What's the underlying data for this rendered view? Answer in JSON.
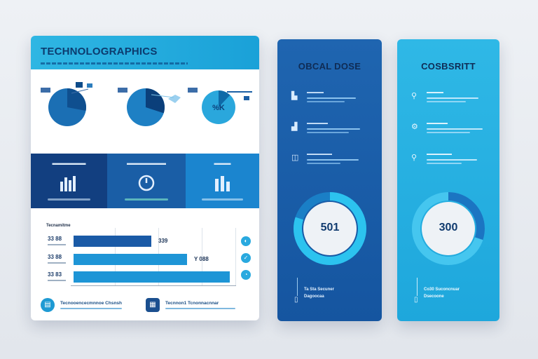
{
  "left_card": {
    "title": "TECHNOLOGRAPHICS",
    "pies": [
      {
        "label_top": "▬▬",
        "fraction": 0.28,
        "color": "#1b6fb4",
        "dark": "#0f4f8f"
      },
      {
        "label_top": "▬▬",
        "fraction": 0.3,
        "color": "#1e80c4",
        "dark": "#0b3f7a"
      },
      {
        "label_top": "▬▬",
        "fraction": 0.12,
        "color": "#2aa7dc",
        "dark": "#0e6aa8",
        "center_text": "%K"
      }
    ],
    "tiles": [
      {
        "label": "▬▬▬▬▬▬",
        "color": "#123f80"
      },
      {
        "label": "▬▬▬▬▬▬▬",
        "color": "#1a5ea6"
      },
      {
        "label": "▬▬▬",
        "color": "#1b85cf"
      }
    ],
    "bars": {
      "title": "Tecnamitme",
      "rows": [
        {
          "label": "33 88",
          "value_label": "339",
          "fraction": 0.48,
          "color": "#1a5aa6"
        },
        {
          "label": "33 88",
          "value_label": "Y 088",
          "fraction": 0.7,
          "color": "#1e95d6"
        },
        {
          "label": "33 83",
          "value_label": "",
          "fraction": 0.96,
          "color": "#1e95d6"
        }
      ]
    },
    "footer": {
      "left_text": "Tecnooencecmnnoe Chsnsh",
      "right_text": "Tecnnon1 Tcnonnacnnar"
    }
  },
  "mid_card": {
    "title": "OBCAL DOSE",
    "rows": [
      {
        "icon": "▙",
        "text": "▬▬▬▬"
      },
      {
        "icon": "▟",
        "text": "▬▬▬▬▬"
      },
      {
        "icon": "◫",
        "text": "▬▬▬▬▬▬"
      }
    ],
    "donut_value": "501",
    "donut_fraction": 0.8,
    "bottom_text_1": "Ta Sta Secuner",
    "bottom_text_2": "Dagoocaa",
    "color_ring": "#2cc3ef",
    "color_ring_dark": "#1a7fc6"
  },
  "right_card": {
    "title": "COSBSRITT",
    "rows": [
      {
        "icon": "⚲",
        "text": "▬▬▬▬"
      },
      {
        "icon": "⚙",
        "text": "▬▬▬▬▬"
      },
      {
        "icon": "⚲",
        "text": "▬▬▬▬▬▬"
      }
    ],
    "donut_value": "300",
    "donut_fraction": 0.3,
    "bottom_text_1": "Co30 Suconcnuar",
    "bottom_text_2": "Dsecoone",
    "color_ring": "#1b75c2",
    "color_ring_dark": "#16528f"
  }
}
